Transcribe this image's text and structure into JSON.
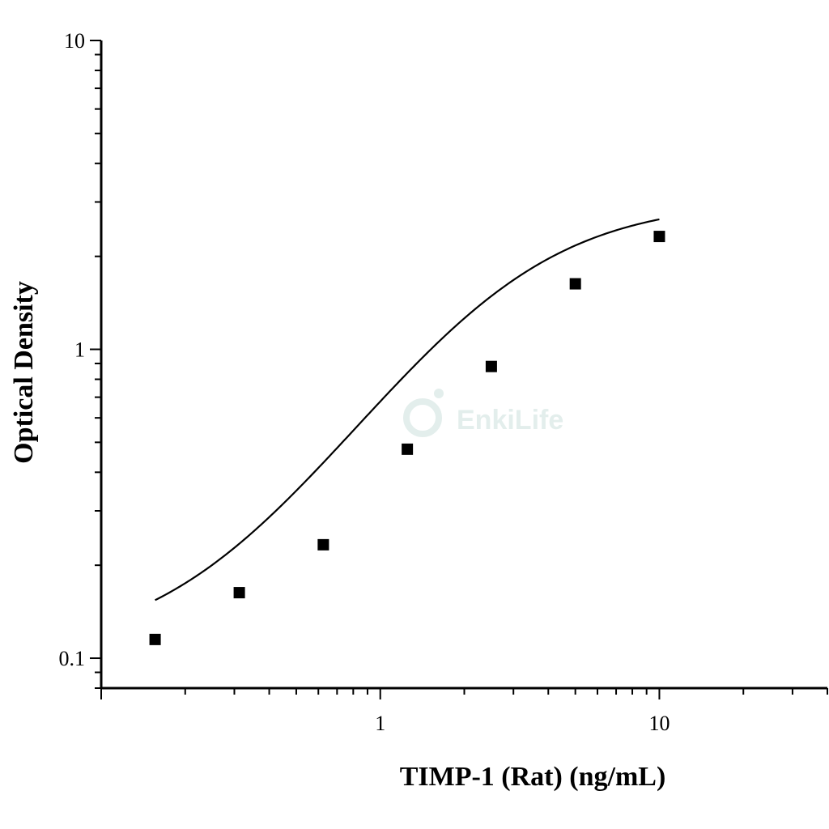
{
  "chart_data": {
    "type": "scatter",
    "xlabel": "TIMP-1 (Rat) (ng/mL)",
    "ylabel": "Optical Density",
    "xscale": "log",
    "yscale": "log",
    "xlim": [
      0.1,
      40
    ],
    "ylim": [
      0.08,
      10
    ],
    "x_ticks": [
      {
        "value": 1,
        "label": "1"
      },
      {
        "value": 10,
        "label": "10"
      }
    ],
    "y_ticks": [
      {
        "value": 0.1,
        "label": "0.1"
      },
      {
        "value": 1,
        "label": "1"
      },
      {
        "value": 10,
        "label": "10"
      }
    ],
    "series": [
      {
        "marker": "square",
        "x": [
          0.156,
          0.3125,
          0.625,
          1.25,
          2.5,
          5,
          10
        ],
        "y": [
          0.115,
          0.163,
          0.233,
          0.475,
          0.88,
          1.63,
          2.32
        ]
      }
    ],
    "fit_curve": {
      "type": "4PL",
      "params": {
        "A": 0.104,
        "B": 1.42,
        "C": 2.7,
        "D": 3.03
      },
      "x_range": [
        0.156,
        10
      ]
    },
    "grid": false,
    "legend": "none",
    "colors": {
      "marker": "#000000",
      "curve": "#000000",
      "axis": "#000000"
    }
  },
  "watermark": {
    "text": "EnkiLife"
  }
}
